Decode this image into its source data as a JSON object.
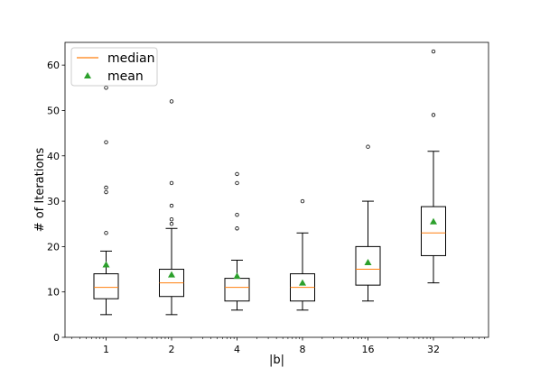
{
  "chart_data": {
    "type": "box",
    "xlabel": "|b|",
    "ylabel": "# of Iterations",
    "ylim": [
      0,
      65
    ],
    "yticks": [
      0,
      10,
      20,
      30,
      40,
      50,
      60
    ],
    "categories": [
      "1",
      "2",
      "4",
      "8",
      "16",
      "32"
    ],
    "boxes": [
      {
        "category": "1",
        "whisker_low": 5,
        "q1": 8.5,
        "median": 11,
        "q3": 14,
        "whisker_high": 19,
        "mean": 16,
        "outliers": [
          23,
          32,
          33,
          43,
          55
        ]
      },
      {
        "category": "2",
        "whisker_low": 5,
        "q1": 9,
        "median": 12,
        "q3": 15,
        "whisker_high": 24,
        "mean": 13.8,
        "outliers": [
          25,
          26,
          29,
          34,
          52
        ]
      },
      {
        "category": "4",
        "whisker_low": 6,
        "q1": 8,
        "median": 11,
        "q3": 13,
        "whisker_high": 17,
        "mean": 13.5,
        "outliers": [
          24,
          27,
          34,
          36
        ]
      },
      {
        "category": "8",
        "whisker_low": 6,
        "q1": 8,
        "median": 11,
        "q3": 14,
        "whisker_high": 23,
        "mean": 12,
        "outliers": [
          30
        ]
      },
      {
        "category": "16",
        "whisker_low": 8,
        "q1": 11.5,
        "median": 15,
        "q3": 20,
        "whisker_high": 30,
        "mean": 16.5,
        "outliers": [
          42
        ]
      },
      {
        "category": "32",
        "whisker_low": 12,
        "q1": 18,
        "median": 23,
        "q3": 28.8,
        "whisker_high": 41,
        "mean": 25.5,
        "outliers": [
          49,
          63
        ]
      }
    ],
    "legend": {
      "position": "top-left",
      "entries": [
        {
          "label": "median",
          "marker": "line",
          "color": "#ff7f0e"
        },
        {
          "label": "mean",
          "marker": "triangle",
          "color": "#2ca02c"
        }
      ]
    },
    "colors": {
      "median": "#ff7f0e",
      "mean": "#2ca02c",
      "box": "#000000"
    },
    "grid": false
  }
}
